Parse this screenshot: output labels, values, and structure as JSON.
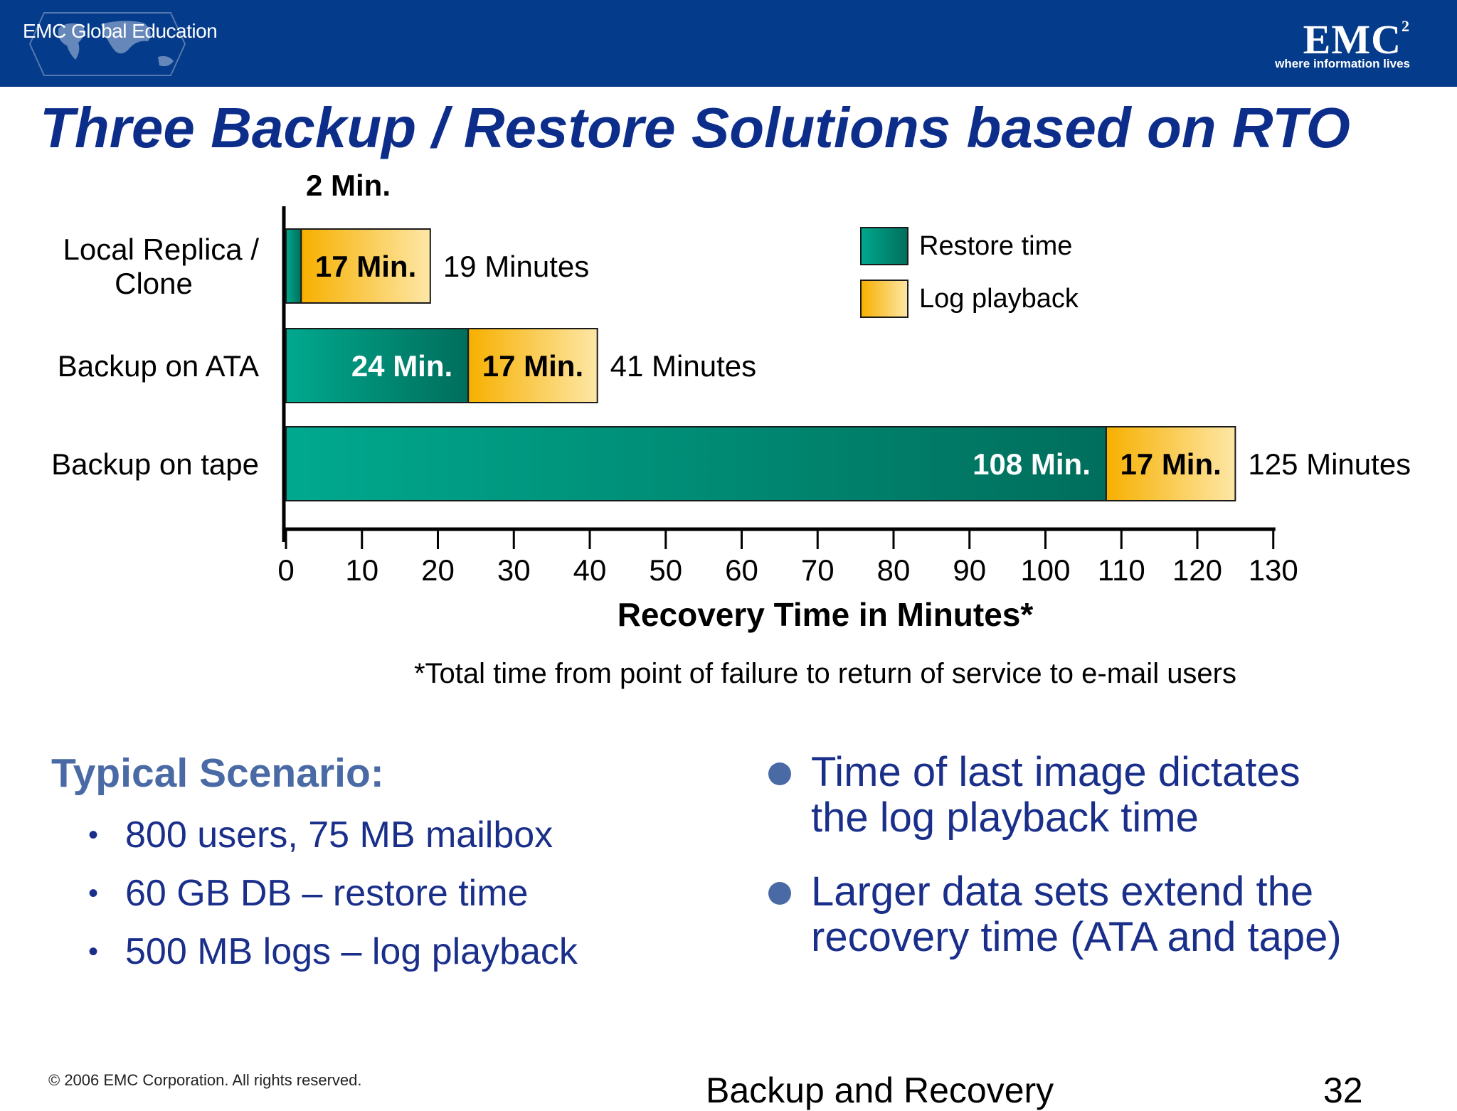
{
  "header": {
    "edu_label": "EMC Global Education",
    "logo_text": "EMC",
    "logo_superscript": "2",
    "tagline": "where information lives"
  },
  "slide_title": "Three Backup / Restore Solutions based on RTO",
  "chart_data": {
    "type": "bar",
    "orientation": "horizontal",
    "stacked": true,
    "categories": [
      "Local Replica /\nClone",
      "Backup on ATA",
      "Backup on tape"
    ],
    "category_lines": [
      [
        "Local Replica /",
        "Clone"
      ],
      [
        "Backup on ATA"
      ],
      [
        "Backup on tape"
      ]
    ],
    "series": [
      {
        "name": "Restore time",
        "values": [
          2,
          24,
          108
        ],
        "color": "#0a9c86",
        "labels": [
          "2 Min.",
          "24 Min.",
          "108 Min."
        ]
      },
      {
        "name": "Log playback",
        "values": [
          17,
          17,
          17
        ],
        "color": "#f7b62a",
        "labels": [
          "17 Min.",
          "17 Min.",
          "17 Min."
        ]
      }
    ],
    "totals": [
      "19 Minutes",
      "41 Minutes",
      "125 Minutes"
    ],
    "xlabel": "Recovery Time in Minutes*",
    "xlim": [
      0,
      130
    ],
    "xticks": [
      0,
      10,
      20,
      30,
      40,
      50,
      60,
      70,
      80,
      90,
      100,
      110,
      120,
      130
    ],
    "legend_position": "top-right",
    "grid": false,
    "footnote": "*Total time from point of failure to return of service to e-mail users"
  },
  "scenario": {
    "title": "Typical Scenario:",
    "items": [
      "800 users, 75 MB mailbox",
      "60 GB DB – restore time",
      "500 MB logs – log playback"
    ],
    "bullet": "•"
  },
  "points": [
    [
      "Time of last image dictates",
      "the log playback time"
    ],
    [
      "Larger data sets extend the",
      "recovery time (ATA and tape)"
    ]
  ],
  "footer": {
    "copyright": "© 2006 EMC Corporation. All rights reserved.",
    "course": "Backup and Recovery",
    "page": "32"
  }
}
